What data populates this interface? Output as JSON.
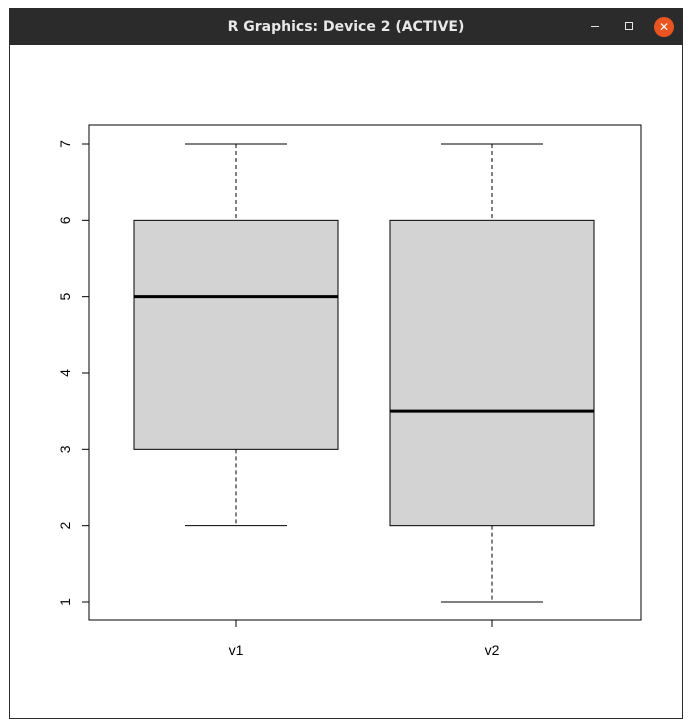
{
  "window": {
    "title": "R Graphics: Device 2 (ACTIVE)",
    "minimize_icon": "minimize-icon",
    "maximize_icon": "maximize-icon",
    "close_icon": "close-icon",
    "close_color": "#e95420"
  },
  "chart_data": {
    "type": "boxplot",
    "title": "",
    "xlabel": "",
    "ylabel": "",
    "categories": [
      "v1",
      "v2"
    ],
    "boxes": [
      {
        "category": "v1",
        "min": 2,
        "q1": 3,
        "median": 5,
        "q3": 6,
        "max": 7
      },
      {
        "category": "v2",
        "min": 1,
        "q1": 2,
        "median": 3.5,
        "q3": 6,
        "max": 7
      }
    ],
    "y_ticks": [
      1,
      2,
      3,
      4,
      5,
      6,
      7
    ],
    "ylim": [
      1,
      7
    ],
    "box_fill": "#d3d3d3",
    "grid": false
  }
}
